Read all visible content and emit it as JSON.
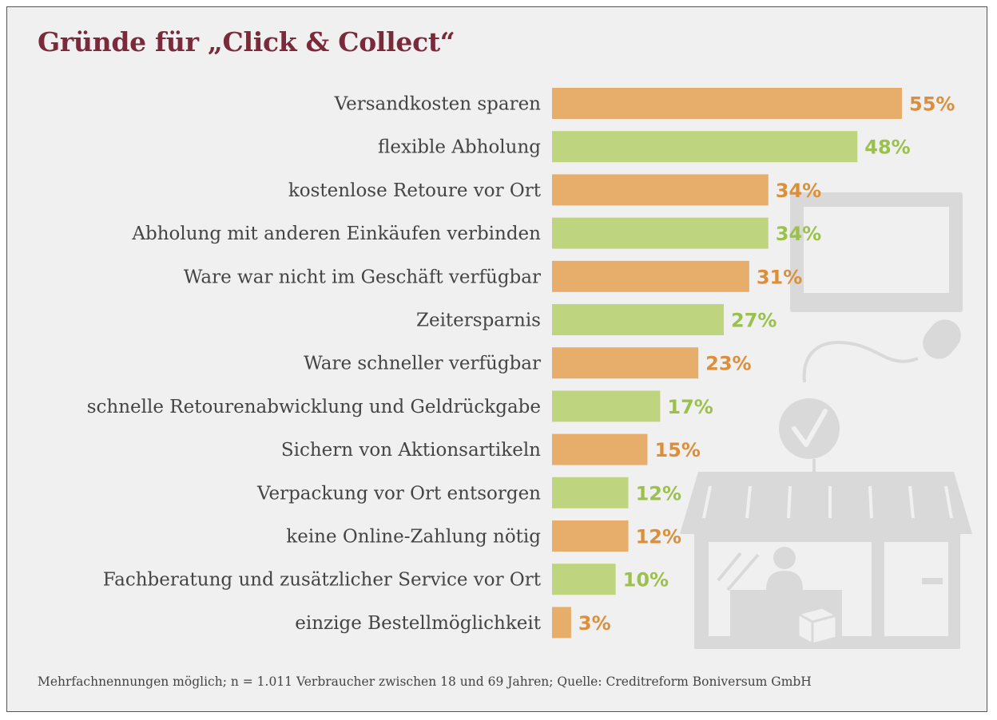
{
  "title": "Gründe für „Click & Collect“",
  "footnote": "Mehrfachnennungen möglich; n = 1.011 Verbraucher zwischen 18 und 69 Jahren; Quelle: Creditreform Boniversum GmbH",
  "colors": {
    "orange": "#e6ad6b",
    "green": "#bfd47e",
    "orange_text": "#dc8f3a",
    "green_text": "#9cc04c",
    "label_text": "#444444",
    "title": "#7a2a3a",
    "illustration": "#d8d8d8"
  },
  "chart_data": {
    "type": "bar",
    "orientation": "horizontal",
    "title": "Gründe für „Click & Collect“",
    "categories": [
      "Versandkosten sparen",
      "flexible Abholung",
      "kostenlose Retoure vor Ort",
      "Abholung mit anderen Einkäufen verbinden",
      "Ware war nicht im Geschäft verfügbar",
      "Zeitersparnis",
      "Ware schneller verfügbar",
      "schnelle Retourenabwicklung und Geldrückgabe",
      "Sichern von Aktionsartikeln",
      "Verpackung vor Ort entsorgen",
      "keine Online-Zahlung nötig",
      "Fachberatung und zusätzlicher Service vor Ort",
      "einzige Bestellmöglichkeit"
    ],
    "values": [
      55,
      48,
      34,
      34,
      31,
      27,
      23,
      17,
      15,
      12,
      12,
      10,
      3
    ],
    "value_labels": [
      "55%",
      "48%",
      "34%",
      "34%",
      "31%",
      "27%",
      "23%",
      "17%",
      "15%",
      "12%",
      "12%",
      "10%",
      "3%"
    ],
    "unit": "%",
    "bar_colors": [
      "orange",
      "green",
      "orange",
      "green",
      "orange",
      "green",
      "orange",
      "green",
      "orange",
      "green",
      "orange",
      "green",
      "orange"
    ],
    "xlim": [
      0,
      55
    ],
    "grid": false,
    "legend": "none"
  }
}
